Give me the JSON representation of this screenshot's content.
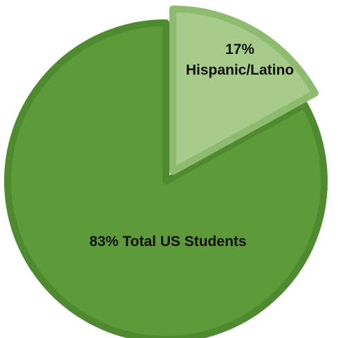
{
  "chart_data": {
    "type": "pie",
    "slices": [
      {
        "value": 83,
        "label_lines": [
          "83% Total US Students"
        ],
        "color": "#5f9a3a",
        "border_color": "#4f8a31"
      },
      {
        "value": 17,
        "label_lines": [
          "17%",
          "Hispanic/Latino"
        ],
        "color": "#a7cb8b",
        "border_color": "#8fbb70"
      }
    ],
    "start_angle_deg": 0,
    "direction": "clockwise"
  }
}
